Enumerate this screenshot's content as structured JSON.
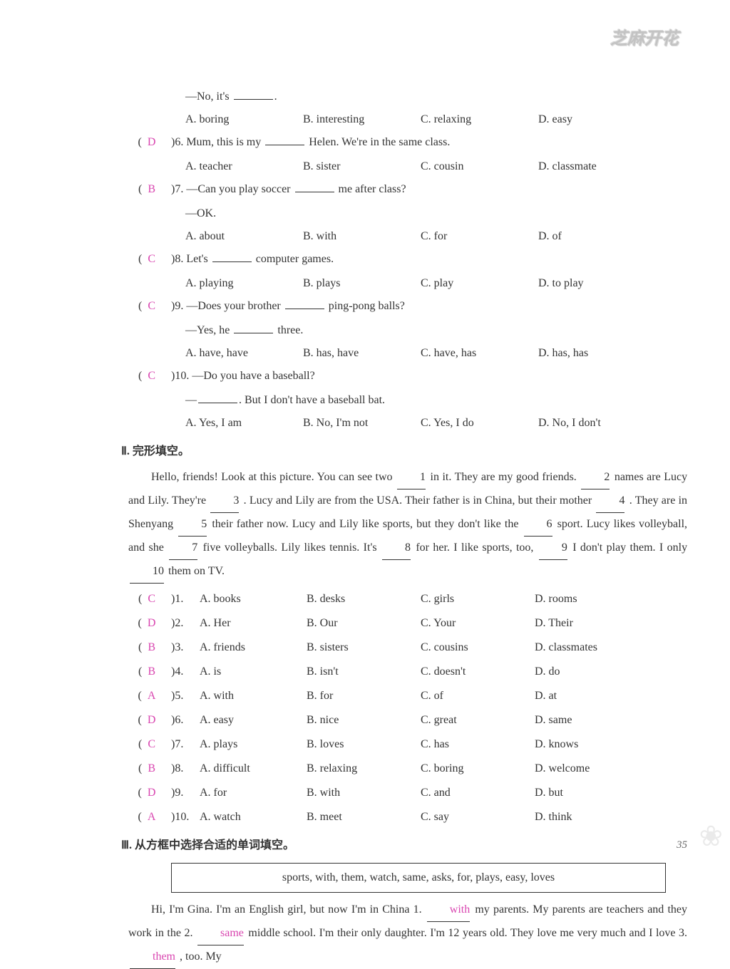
{
  "logo_text": "芝麻开花",
  "section1": {
    "q5": {
      "line1": "—No, it's",
      "opts": {
        "a": "A. boring",
        "b": "B. interesting",
        "c": "C. relaxing",
        "d": "D. easy"
      }
    },
    "q6": {
      "ans": "D",
      "text_before": ")6. Mum, this is my",
      "text_after": "Helen. We're in the same class.",
      "opts": {
        "a": "A. teacher",
        "b": "B. sister",
        "c": "C. cousin",
        "d": "D. classmate"
      }
    },
    "q7": {
      "ans": "B",
      "text_before": ")7. —Can you play soccer",
      "text_after": "me after class?",
      "line2": "—OK.",
      "opts": {
        "a": "A. about",
        "b": "B. with",
        "c": "C. for",
        "d": "D. of"
      }
    },
    "q8": {
      "ans": "C",
      "text_before": ")8. Let's",
      "text_after": "computer games.",
      "opts": {
        "a": "A. playing",
        "b": "B. plays",
        "c": "C. play",
        "d": "D. to play"
      }
    },
    "q9": {
      "ans": "C",
      "text_before": ")9. —Does your brother",
      "text_after": "ping-pong balls?",
      "line2_before": "—Yes, he",
      "line2_after": "three.",
      "opts": {
        "a": "A. have, have",
        "b": "B. has, have",
        "c": "C. have, has",
        "d": "D. has, has"
      }
    },
    "q10": {
      "ans": "C",
      "text": ")10. —Do you have a baseball?",
      "line2_before": "—",
      "line2_after": ". But I don't have a baseball bat.",
      "opts": {
        "a": "A. Yes, I am",
        "b": "B. No, I'm not",
        "c": "C. Yes, I do",
        "d": "D. No, I don't"
      }
    }
  },
  "section2": {
    "title": "Ⅱ. 完形填空。",
    "passage_parts": {
      "p1": "Hello, friends! Look at this picture. You can see two",
      "n1": "1",
      "p2": "in it. They are my good friends.",
      "n2": "2",
      "p3": "names are Lucy and Lily. They're",
      "n3": "3",
      "p4": ". Lucy and Lily are from the USA. Their father is in China, but their mother",
      "n4": "4",
      "p5": ". They are in Shenyang",
      "n5": "5",
      "p6": "their father now. Lucy and Lily like sports, but they don't like the",
      "n6": "6",
      "p7": "sport. Lucy likes volleyball, and she",
      "n7": "7",
      "p8": "five volleyballs. Lily likes tennis. It's",
      "n8": "8",
      "p9": "for her. I like sports, too,",
      "n9": "9",
      "p10": "I don't play them. I only",
      "n10": "10",
      "p11": "them on TV."
    },
    "answers": [
      {
        "ans": "C",
        "num": ")1.",
        "a": "A. books",
        "b": "B. desks",
        "c": "C. girls",
        "d": "D. rooms"
      },
      {
        "ans": "D",
        "num": ")2.",
        "a": "A. Her",
        "b": "B. Our",
        "c": "C. Your",
        "d": "D. Their"
      },
      {
        "ans": "B",
        "num": ")3.",
        "a": "A. friends",
        "b": "B. sisters",
        "c": "C. cousins",
        "d": "D. classmates"
      },
      {
        "ans": "B",
        "num": ")4.",
        "a": "A. is",
        "b": "B. isn't",
        "c": "C. doesn't",
        "d": "D. do"
      },
      {
        "ans": "A",
        "num": ")5.",
        "a": "A. with",
        "b": "B. for",
        "c": "C. of",
        "d": "D. at"
      },
      {
        "ans": "D",
        "num": ")6.",
        "a": "A. easy",
        "b": "B. nice",
        "c": "C. great",
        "d": "D. same"
      },
      {
        "ans": "C",
        "num": ")7.",
        "a": "A. plays",
        "b": "B. loves",
        "c": "C. has",
        "d": "D. knows"
      },
      {
        "ans": "B",
        "num": ")8.",
        "a": "A. difficult",
        "b": "B. relaxing",
        "c": "C. boring",
        "d": "D. welcome"
      },
      {
        "ans": "D",
        "num": ")9.",
        "a": "A. for",
        "b": "B. with",
        "c": "C. and",
        "d": "D. but"
      },
      {
        "ans": "A",
        "num": ")10.",
        "a": "A. watch",
        "b": "B. meet",
        "c": "C. say",
        "d": "D. think"
      }
    ]
  },
  "section3": {
    "title": "Ⅲ. 从方框中选择合适的单词填空。",
    "word_box": "sports, with, them, watch, same, asks, for, plays, easy, loves",
    "p1": "Hi, I'm Gina. I'm an English girl, but now I'm in China 1.",
    "a1": "with",
    "p2": "my parents. My parents are teachers and they work in the 2.",
    "a2": "same",
    "p3": "middle school. I'm their only daughter. I'm 12 years old. They love me very much and I love 3.",
    "a3": "them",
    "p4": ", too. My"
  },
  "page_num": "35"
}
